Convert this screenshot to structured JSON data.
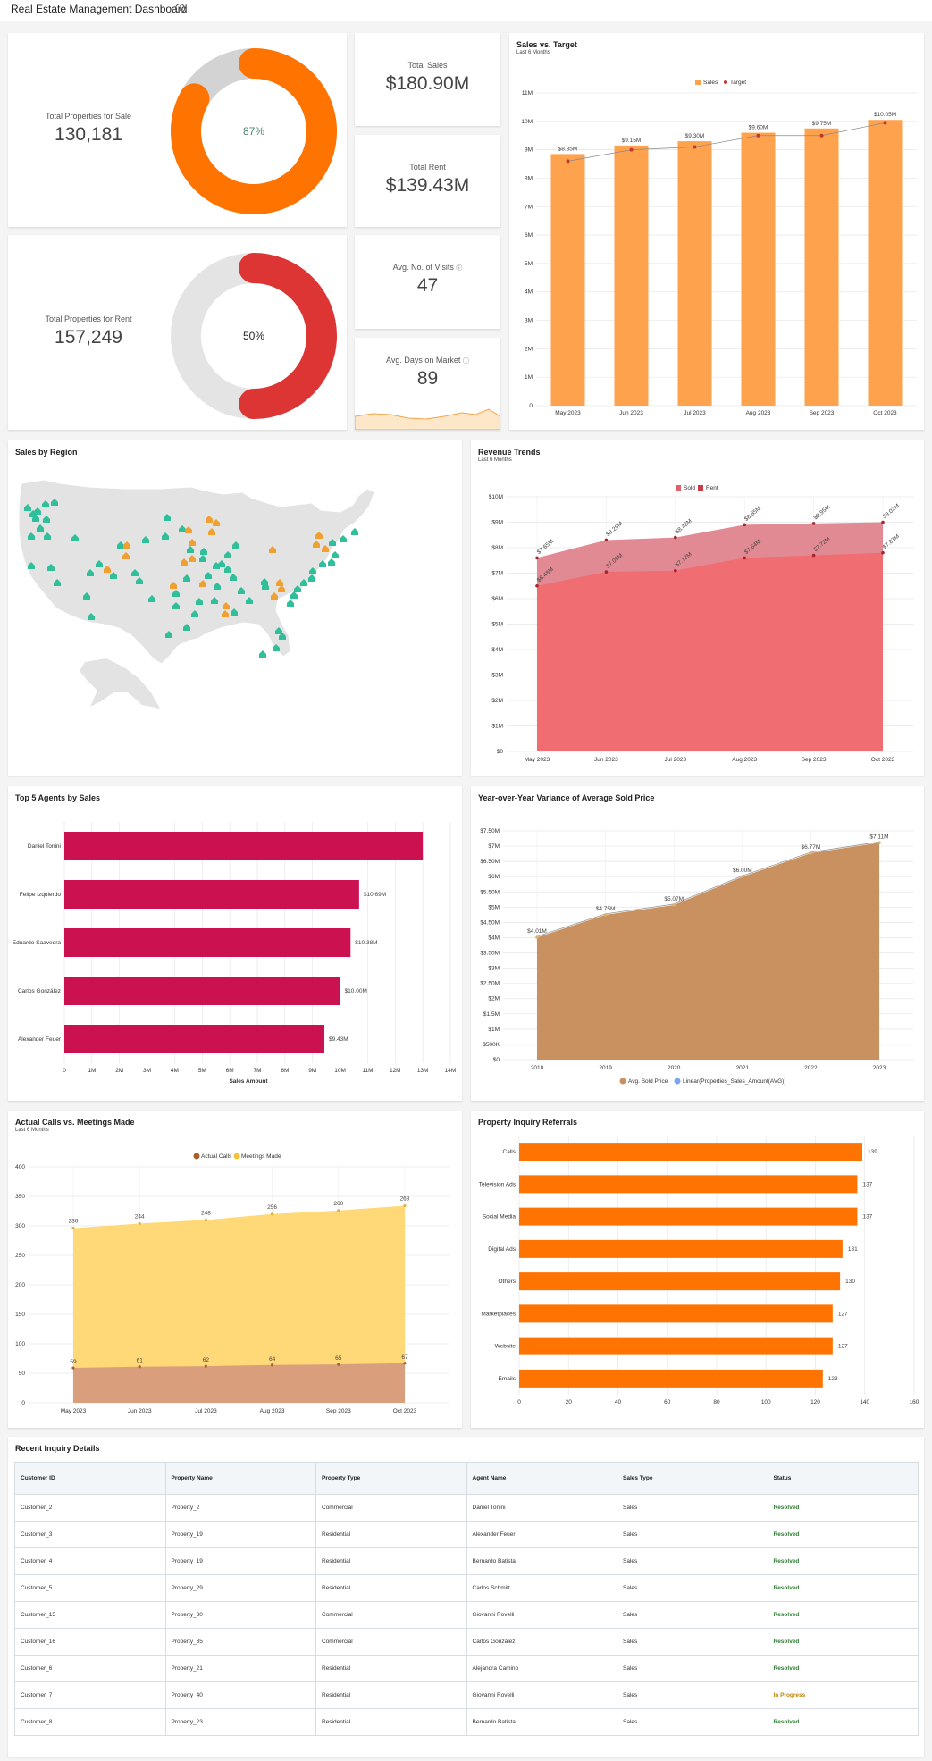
{
  "header": {
    "title": "Real Estate Management Dashboard",
    "info_icon": "info-icon"
  },
  "kpis": {
    "sale": {
      "label": "Total Properties for Sale",
      "value": "130,181",
      "percent_text": "87%",
      "fraction": 0.87
    },
    "rent": {
      "label": "Total Properties for Rent",
      "value": "157,249",
      "percent_text": "50%",
      "fraction": 0.5
    },
    "total_sales": {
      "label": "Total Sales",
      "value": "$180.90M"
    },
    "total_rent": {
      "label": "Total Rent",
      "value": "$139.43M"
    },
    "visits": {
      "label": "Avg. No. of Visits",
      "value": "47"
    },
    "days": {
      "label": "Avg. Days on Market",
      "value": "89"
    }
  },
  "colors": {
    "orange": "#ff7300",
    "donut_gray": "#e4e4e4",
    "red": "#dd3434",
    "bar_orange": "#ffa24d",
    "pink": "#cc1150",
    "tan": "#c99160",
    "yellow": "#ffd877"
  },
  "sales_vs_target": {
    "title": "Sales vs. Target",
    "subtitle": "Last 6 Months",
    "chart_data": {
      "type": "bar",
      "categories": [
        "May 2023",
        "Jun 2023",
        "Jul 2023",
        "Aug 2023",
        "Sep 2023",
        "Oct 2023"
      ],
      "series": [
        {
          "name": "Sales",
          "values": [
            8.85,
            9.15,
            9.3,
            9.6,
            9.75,
            10.05
          ]
        },
        {
          "name": "Target",
          "values": [
            8.6,
            9.0,
            9.1,
            9.5,
            9.5,
            9.95
          ]
        }
      ],
      "data_labels": [
        "$8.85M",
        "$9.15M",
        "$9.30M",
        "$9.60M",
        "$9.75M",
        "$10.05M"
      ],
      "ylim": [
        0,
        11
      ],
      "yticks": [
        "0",
        "1M",
        "2M",
        "3M",
        "4M",
        "5M",
        "6M",
        "7M",
        "8M",
        "9M",
        "10M",
        "11M"
      ],
      "legend": "top-center"
    }
  },
  "sales_by_region": {
    "title": "Sales by Region"
  },
  "revenue_trends": {
    "title": "Revenue Trends",
    "subtitle": "Last 6 Months",
    "chart_data": {
      "type": "area",
      "categories": [
        "May 2023",
        "Jun 2023",
        "Jul 2023",
        "Aug 2023",
        "Sep 2023",
        "Oct 2023"
      ],
      "series": [
        {
          "name": "Sold",
          "values": [
            7.6,
            8.3,
            8.4,
            8.9,
            8.95,
            9.0
          ],
          "labels": [
            "$7.65M",
            "$8.29M",
            "$8.42M",
            "$8.85M",
            "$8.95M",
            "$9.02M"
          ]
        },
        {
          "name": "Rent",
          "values": [
            6.5,
            7.05,
            7.1,
            7.6,
            7.7,
            7.8
          ],
          "labels": [
            "$6.48M",
            "$7.05M",
            "$7.12M",
            "$7.64M",
            "$7.72M",
            "$7.83M"
          ]
        }
      ],
      "ylim": [
        0,
        10
      ],
      "yticks": [
        "$0",
        "$1M",
        "$2M",
        "$3M",
        "$4M",
        "$5M",
        "$6M",
        "$7M",
        "$8M",
        "$9M",
        "$10M"
      ],
      "legend": "top-center"
    }
  },
  "top_agents": {
    "title": "Top 5 Agents by Sales",
    "chart_data": {
      "type": "bar",
      "orientation": "horizontal",
      "categories": [
        "Daniel Tonini",
        "Felipe Izquierdo",
        "Eduardo Saavedra",
        "Carlos González",
        "Alexander Feuer"
      ],
      "values": [
        13.0,
        10.69,
        10.38,
        10.0,
        9.43
      ],
      "labels": [
        "",
        "$10.69M",
        "$10.38M",
        "$10.00M",
        "$9.43M"
      ],
      "xticks": [
        "0",
        "1M",
        "2M",
        "3M",
        "4M",
        "5M",
        "6M",
        "7M",
        "8M",
        "9M",
        "10M",
        "11M",
        "12M",
        "13M",
        "14M"
      ],
      "xlabel": "Sales Amount",
      "xlim": [
        0,
        14
      ]
    }
  },
  "yoy": {
    "title": "Year-over-Year Variance of Average Sold Price",
    "chart_data": {
      "type": "area",
      "categories": [
        "2018",
        "2019",
        "2020",
        "2021",
        "2022",
        "2023"
      ],
      "series": [
        {
          "name": "Avg. Sold Price",
          "values": [
            4.01,
            4.75,
            5.07,
            6.0,
            6.77,
            7.11
          ],
          "labels": [
            "$4.01M",
            "$4.75M",
            "$5.07M",
            "$6.00M",
            "$6.77M",
            "$7.11M"
          ]
        },
        {
          "name": "Linear(Properties_Sales_Amount(AVG))",
          "values": [
            4.01,
            4.75,
            5.07,
            6.0,
            6.77,
            7.11
          ]
        }
      ],
      "ylim": [
        0,
        7.5
      ],
      "yticks": [
        "$0",
        "$500K",
        "$1M",
        "$1.5M",
        "$2M",
        "$2.50M",
        "$3M",
        "$3.50M",
        "$4M",
        "$4.50M",
        "$5M",
        "$5.50M",
        "$6M",
        "$6.50M",
        "$7M",
        "$7.50M"
      ],
      "legend": "bottom-center"
    }
  },
  "calls": {
    "title": "Actual Calls vs. Meetings Made",
    "subtitle": "Last 6 Months",
    "chart_data": {
      "type": "area",
      "categories": [
        "May 2023",
        "Jun 2023",
        "Jul 2023",
        "Aug 2023",
        "Sep 2023",
        "Oct 2023"
      ],
      "series": [
        {
          "name": "Actual Calls",
          "values": [
            59,
            61,
            62,
            64,
            65,
            67
          ]
        },
        {
          "name": "Meetings Made",
          "values": [
            296,
            304,
            310,
            320,
            326,
            334
          ],
          "labels": [
            "236",
            "244",
            "248",
            "256",
            "260",
            "268"
          ]
        }
      ],
      "ylim": [
        0,
        400
      ],
      "yticks": [
        "0",
        "50",
        "100",
        "150",
        "200",
        "250",
        "300",
        "350",
        "400"
      ],
      "legend": "top-center"
    }
  },
  "referrals": {
    "title": "Property Inquiry Referrals",
    "chart_data": {
      "type": "bar",
      "orientation": "horizontal",
      "categories": [
        "Calls",
        "Television Ads",
        "Social Media",
        "Digital Ads",
        "Others",
        "Marketplaces",
        "Website",
        "Emails"
      ],
      "values": [
        139,
        137,
        137,
        131,
        130,
        127,
        127,
        123
      ],
      "xlim": [
        0,
        160
      ],
      "xticks": [
        "0",
        "20",
        "40",
        "60",
        "80",
        "100",
        "120",
        "140",
        "160"
      ]
    }
  },
  "inquiries": {
    "title": "Recent Inquiry Details",
    "columns": [
      "Customer ID",
      "Property Name",
      "Property Type",
      "Agent Name",
      "Sales Type",
      "Status"
    ],
    "rows": [
      [
        "Customer_2",
        "Property_2",
        "Commercial",
        "Daniel Tonini",
        "Sales",
        "Resolved"
      ],
      [
        "Customer_3",
        "Property_19",
        "Residential",
        "Alexander Feuer",
        "Sales",
        "Resolved"
      ],
      [
        "Customer_4",
        "Property_19",
        "Residential",
        "Bernardo Batista",
        "Sales",
        "Resolved"
      ],
      [
        "Customer_5",
        "Property_29",
        "Residential",
        "Carlos Schmitt",
        "Sales",
        "Resolved"
      ],
      [
        "Customer_15",
        "Property_30",
        "Commercial",
        "Giovanni Rovelli",
        "Sales",
        "Resolved"
      ],
      [
        "Customer_16",
        "Property_35",
        "Commercial",
        "Carlos González",
        "Sales",
        "Resolved"
      ],
      [
        "Customer_6",
        "Property_21",
        "Residential",
        "Alejandra Camino",
        "Sales",
        "Resolved"
      ],
      [
        "Customer_7",
        "Property_40",
        "Residential",
        "Giovanni Rovelli",
        "Sales",
        "In Progress"
      ],
      [
        "Customer_8",
        "Property_23",
        "Residential",
        "Bernardo Batista",
        "Sales",
        "Resolved"
      ]
    ]
  }
}
